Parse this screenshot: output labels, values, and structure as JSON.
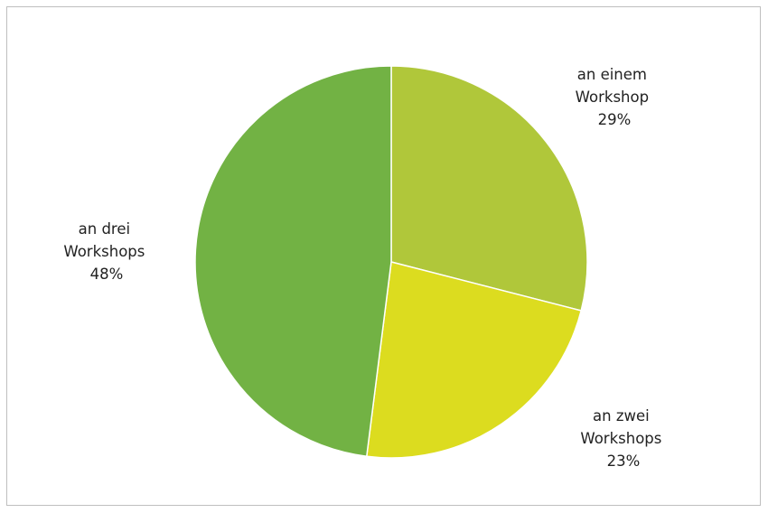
{
  "chart_data": {
    "type": "pie",
    "title": "",
    "slices": [
      {
        "label_lines": [
          "an einem",
          "Workshop"
        ],
        "value": 29,
        "value_label": "29%",
        "color": "#b0c73a"
      },
      {
        "label_lines": [
          "an zwei",
          "Workshops"
        ],
        "value": 23,
        "value_label": "23%",
        "color": "#dcdc1f"
      },
      {
        "label_lines": [
          "an drei",
          "Workshops"
        ],
        "value": 48,
        "value_label": "48%",
        "color": "#72b244"
      }
    ],
    "start_angle": "12 o'clock",
    "direction": "clockwise",
    "legend": "none",
    "slice_border_color": "#ffffff"
  }
}
